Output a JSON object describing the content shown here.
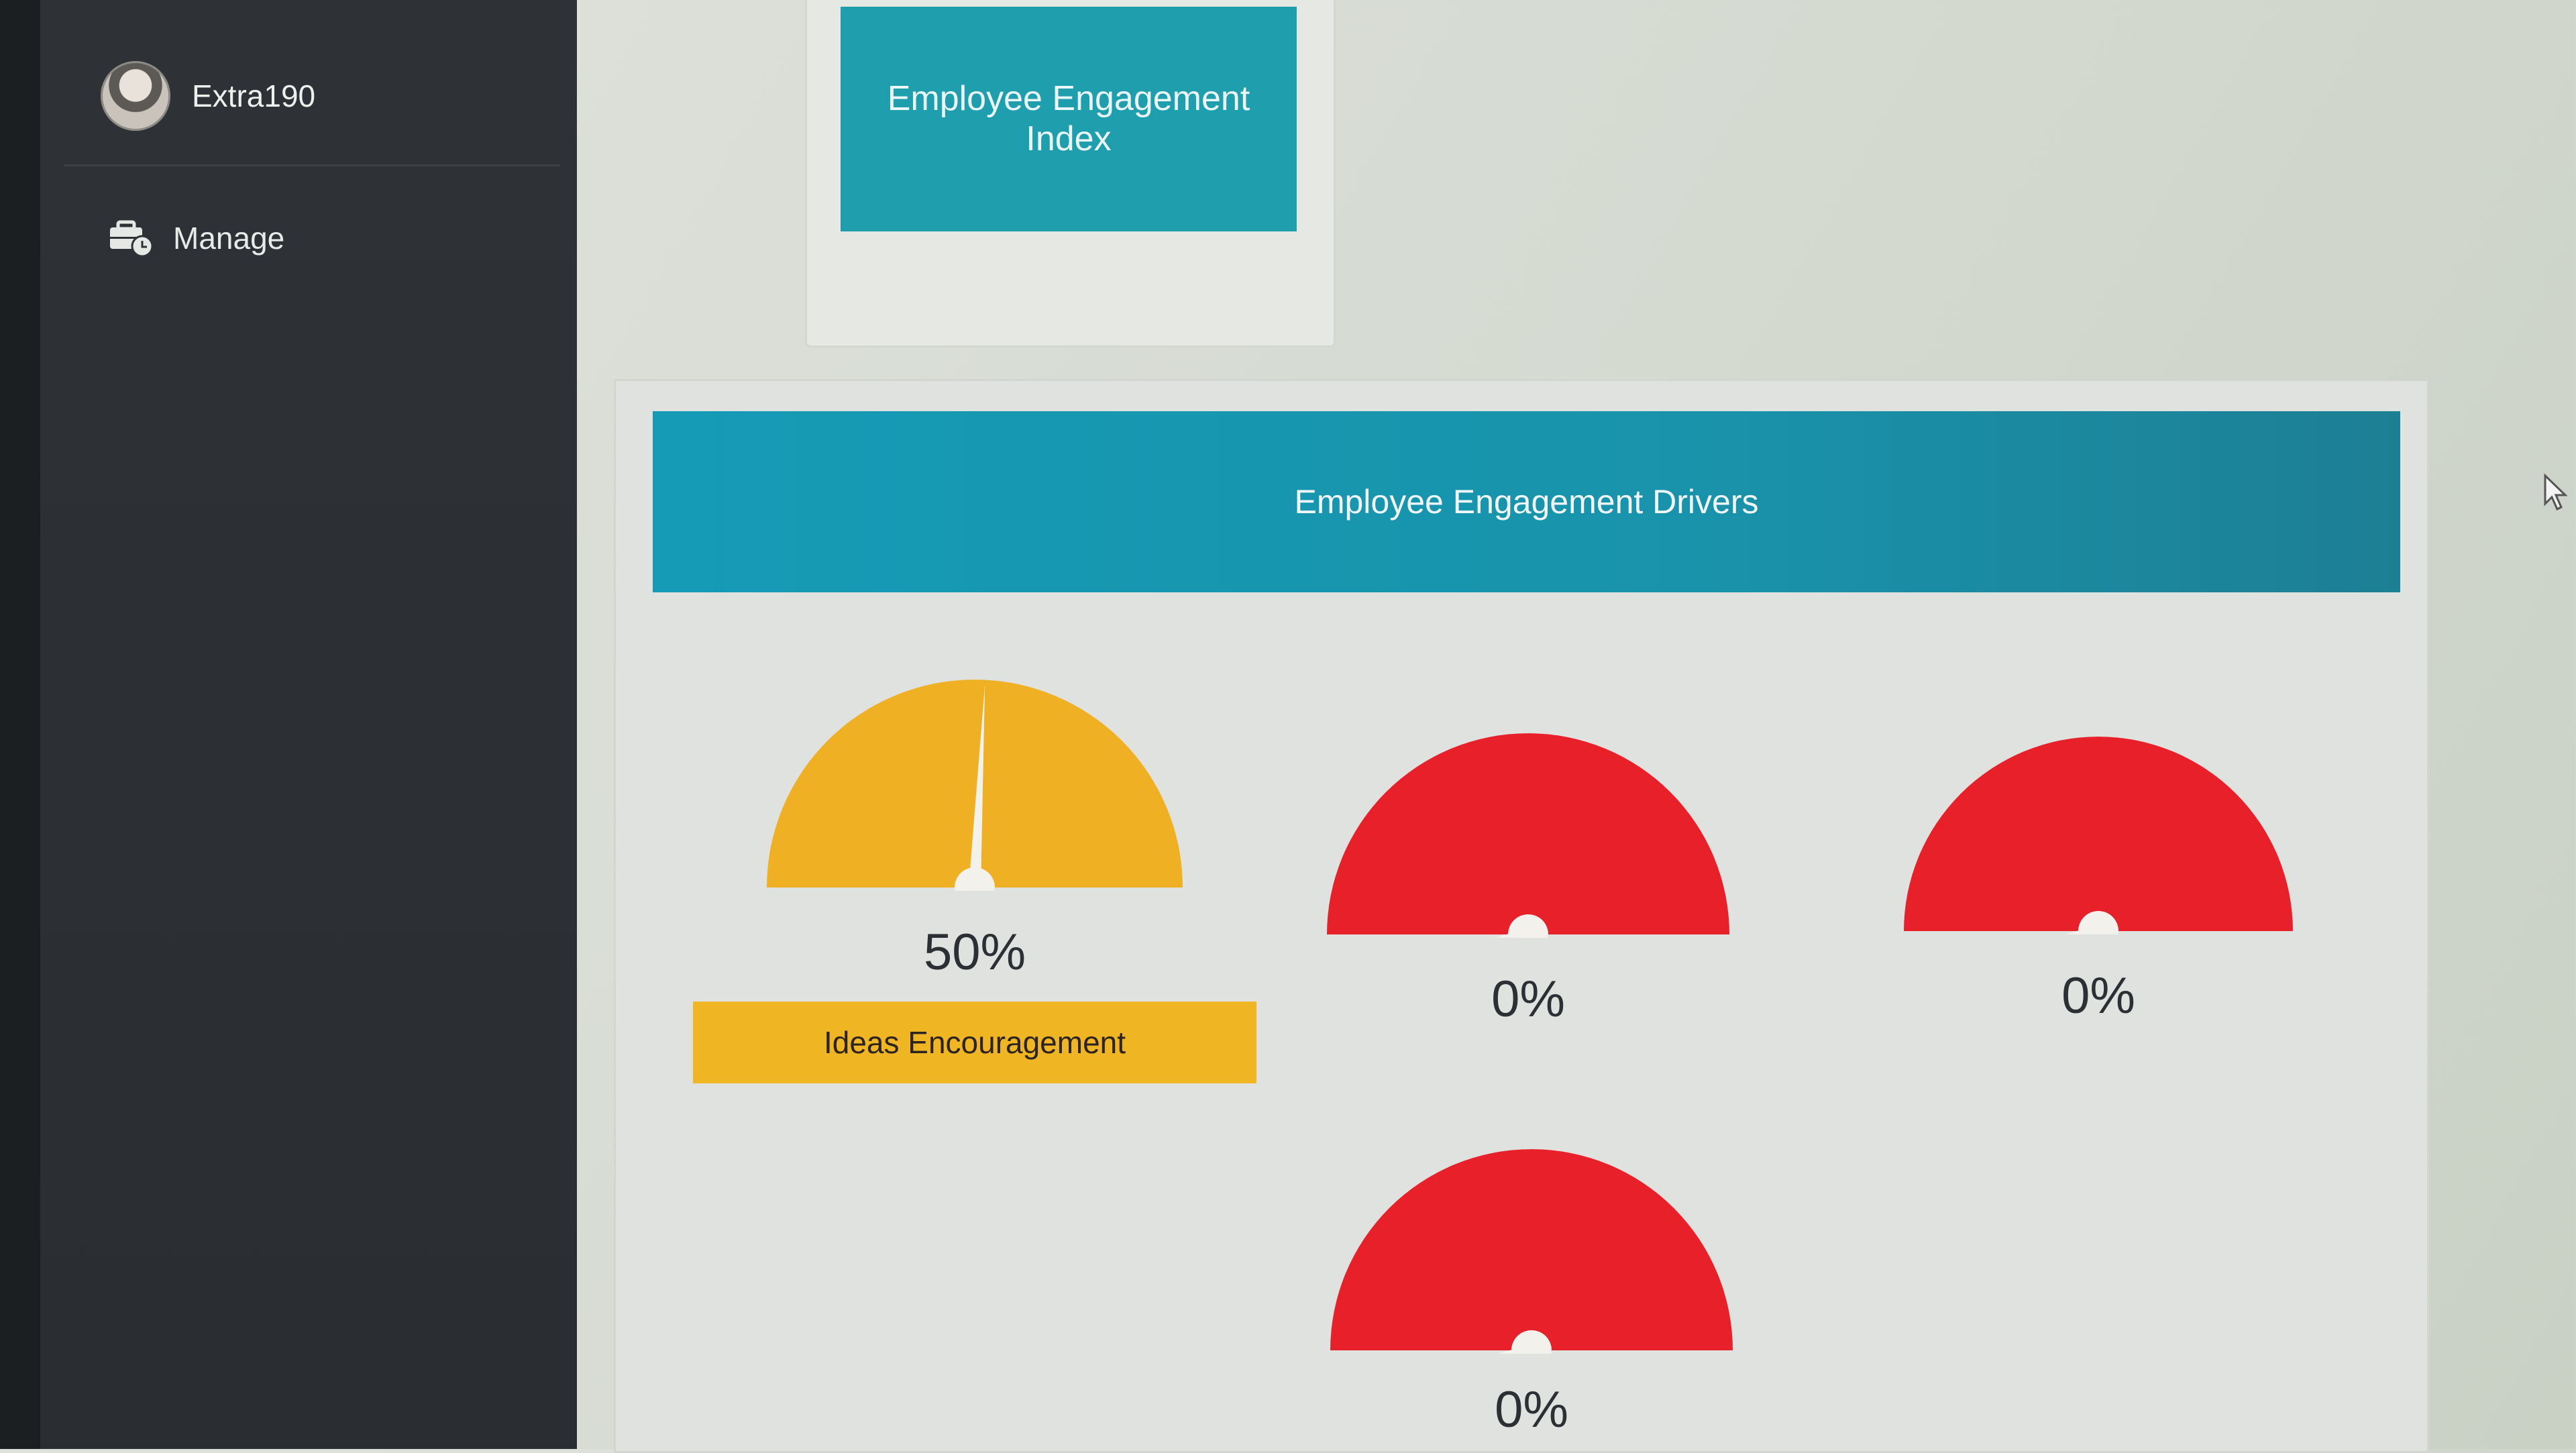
{
  "sidebar": {
    "username": "Extra190",
    "nav": [
      {
        "label": "Manage",
        "icon": "briefcase-clock-icon"
      }
    ]
  },
  "index_card": {
    "title": "Employee Engagement Index"
  },
  "drivers": {
    "header": "Employee Engagement Drivers",
    "gauges": [
      {
        "value": 50,
        "display": "50%",
        "label": "Ideas Encouragement",
        "color": "#f0b023"
      },
      {
        "value": 0,
        "display": "0%",
        "label": "",
        "color": "#e8202a"
      },
      {
        "value": 0,
        "display": "0%",
        "label": "",
        "color": "#e8202a"
      },
      {
        "value": 0,
        "display": "0%",
        "label": "",
        "color": "#e8202a"
      }
    ]
  }
}
